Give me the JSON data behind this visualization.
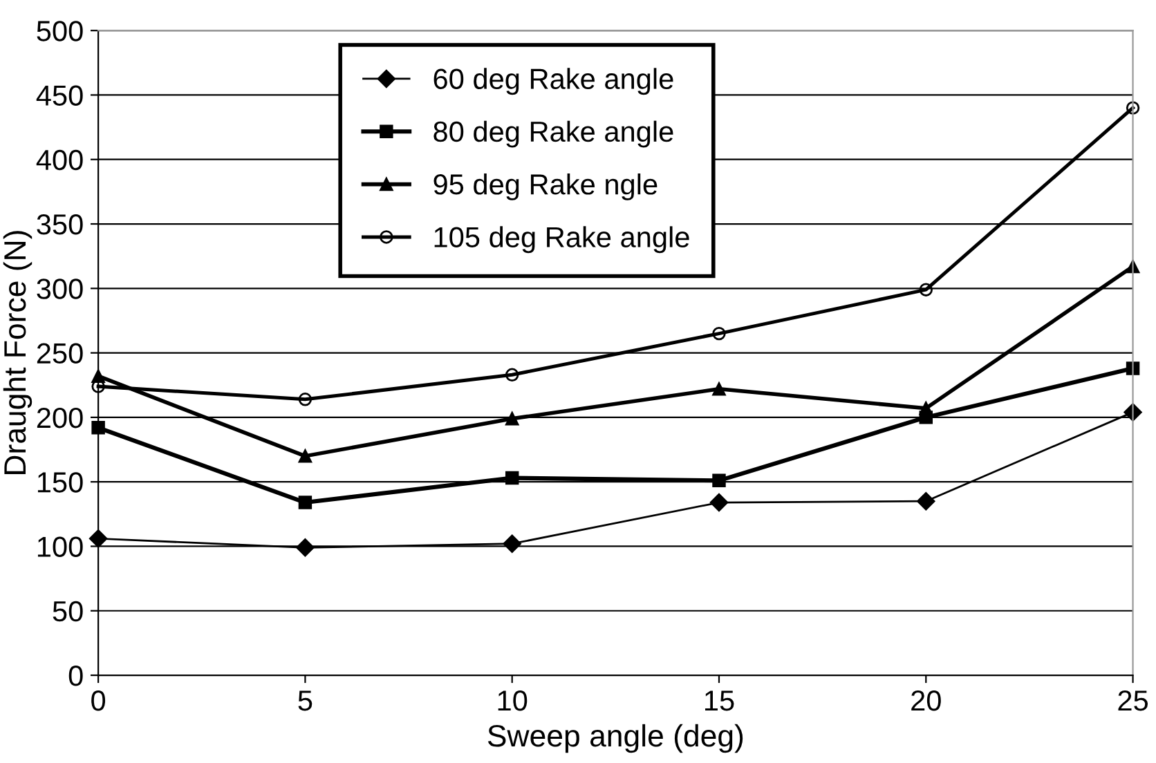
{
  "chart_data": {
    "type": "line",
    "xlabel": "Sweep angle (deg)",
    "ylabel": "Draught Force (N)",
    "x": [
      0,
      5,
      10,
      15,
      20,
      25
    ],
    "series": [
      {
        "name": "60 deg Rake angle",
        "color": "#000000",
        "marker": "diamond",
        "values": [
          106,
          99,
          102,
          134,
          135,
          204
        ]
      },
      {
        "name": "80 deg Rake angle",
        "color": "#000000",
        "marker": "square",
        "values": [
          192,
          134,
          153,
          151,
          200,
          238
        ]
      },
      {
        "name": "95 deg Rake ngle",
        "color": "#000000",
        "marker": "triangle",
        "values": [
          232,
          170,
          199,
          222,
          207,
          317
        ]
      },
      {
        "name": "105 deg Rake angle",
        "color": "#000000",
        "marker": "circle",
        "values": [
          224,
          214,
          233,
          265,
          299,
          440
        ]
      }
    ],
    "xlim": [
      0,
      25
    ],
    "xticks": [
      0,
      5,
      10,
      15,
      20,
      25
    ],
    "ylim": [
      0,
      500
    ],
    "yticks": [
      0,
      50,
      100,
      150,
      200,
      250,
      300,
      350,
      400,
      450,
      500
    ],
    "grid": "y",
    "legend": "top left",
    "line_style": "solid"
  }
}
